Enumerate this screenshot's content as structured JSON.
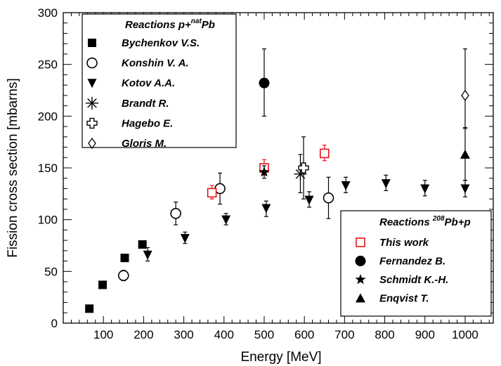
{
  "chart_data": {
    "type": "scatter",
    "xlabel": "Energy [MeV]",
    "ylabel": "Fission cross section [mbarns]",
    "xlim": [
      0,
      1070
    ],
    "ylim": [
      0,
      300
    ],
    "x_ticks": [
      "100",
      "200",
      "300",
      "400",
      "500",
      "600",
      "700",
      "800",
      "900",
      "1000"
    ],
    "y_ticks": [
      "0",
      "50",
      "100",
      "150",
      "200",
      "250",
      "300"
    ],
    "grid": false,
    "legends": [
      {
        "placement": "top-left",
        "title_prefix": "Reactions p+",
        "title_sup": "nat",
        "title_suffix": "Pb",
        "entries": [
          "Bychenkov V.S.",
          "Konshin V. A.",
          "Kotov A.A.",
          "Brandt R.",
          "Hagebo E.",
          "Gloris M."
        ]
      },
      {
        "placement": "bottom-right",
        "title_prefix": "Reactions ",
        "title_sup": "208",
        "title_suffix": "Pb+p",
        "entries": [
          "This work",
          "Fernandez B.",
          "Schmidt K.-H.",
          "Enqvist T."
        ]
      }
    ],
    "series": [
      {
        "name": "Bychenkov V.S.",
        "marker": "filled-square",
        "color": "#000000",
        "points": [
          {
            "x": 65,
            "y": 14
          },
          {
            "x": 98,
            "y": 37
          },
          {
            "x": 153,
            "y": 63
          },
          {
            "x": 197,
            "y": 76
          }
        ]
      },
      {
        "name": "Konshin V. A.",
        "marker": "open-circle",
        "color": "#000000",
        "points": [
          {
            "x": 150,
            "y": 46,
            "lo": 41,
            "hi": 51
          },
          {
            "x": 280,
            "y": 106,
            "lo": 95,
            "hi": 117
          },
          {
            "x": 390,
            "y": 130,
            "lo": 115,
            "hi": 145
          },
          {
            "x": 660,
            "y": 121,
            "lo": 101,
            "hi": 141
          }
        ]
      },
      {
        "name": "Kotov A.A.",
        "marker": "filled-triangle-down",
        "color": "#000000",
        "points": [
          {
            "x": 210,
            "y": 66,
            "lo": 60,
            "hi": 73
          },
          {
            "x": 303,
            "y": 82,
            "lo": 77,
            "hi": 88
          },
          {
            "x": 405,
            "y": 100,
            "lo": 95,
            "hi": 106
          },
          {
            "x": 505,
            "y": 111,
            "lo": 103,
            "hi": 118
          },
          {
            "x": 612,
            "y": 119,
            "lo": 112,
            "hi": 127
          },
          {
            "x": 703,
            "y": 133,
            "lo": 126,
            "hi": 141
          },
          {
            "x": 803,
            "y": 135,
            "lo": 128,
            "hi": 143
          },
          {
            "x": 900,
            "y": 130,
            "lo": 123,
            "hi": 138
          },
          {
            "x": 1000,
            "y": 130,
            "lo": 122,
            "hi": 138
          }
        ]
      },
      {
        "name": "Brandt R.",
        "marker": "asterisk",
        "color": "#000000",
        "points": [
          {
            "x": 590,
            "y": 144,
            "lo": 126,
            "hi": 163
          }
        ]
      },
      {
        "name": "Hagebo E.",
        "marker": "open-cross",
        "color": "#000000",
        "points": [
          {
            "x": 598,
            "y": 150,
            "lo": 120,
            "hi": 180
          }
        ]
      },
      {
        "name": "Gloris M.",
        "marker": "open-diamond",
        "color": "#000000",
        "points": [
          {
            "x": 1000,
            "y": 220,
            "lo": 189,
            "hi": 265
          }
        ]
      },
      {
        "name": "This work",
        "marker": "open-square",
        "color": "#e8141b",
        "points": [
          {
            "x": 370,
            "y": 126,
            "lo": 120,
            "hi": 133
          },
          {
            "x": 500,
            "y": 150,
            "lo": 143,
            "hi": 158
          },
          {
            "x": 650,
            "y": 164,
            "lo": 157,
            "hi": 172
          }
        ]
      },
      {
        "name": "Fernandez B.",
        "marker": "filled-circle",
        "color": "#000000",
        "points": [
          {
            "x": 500,
            "y": 232,
            "lo": 200,
            "hi": 265
          }
        ]
      },
      {
        "name": "Schmidt K.-H.",
        "marker": "filled-star",
        "color": "#000000",
        "points": [
          {
            "x": 500,
            "y": 146,
            "lo": 140,
            "hi": 152
          }
        ]
      },
      {
        "name": "Enqvist T.",
        "marker": "filled-triangle-up",
        "color": "#000000",
        "points": [
          {
            "x": 1000,
            "y": 163,
            "lo": 138,
            "hi": 188
          }
        ]
      }
    ]
  }
}
